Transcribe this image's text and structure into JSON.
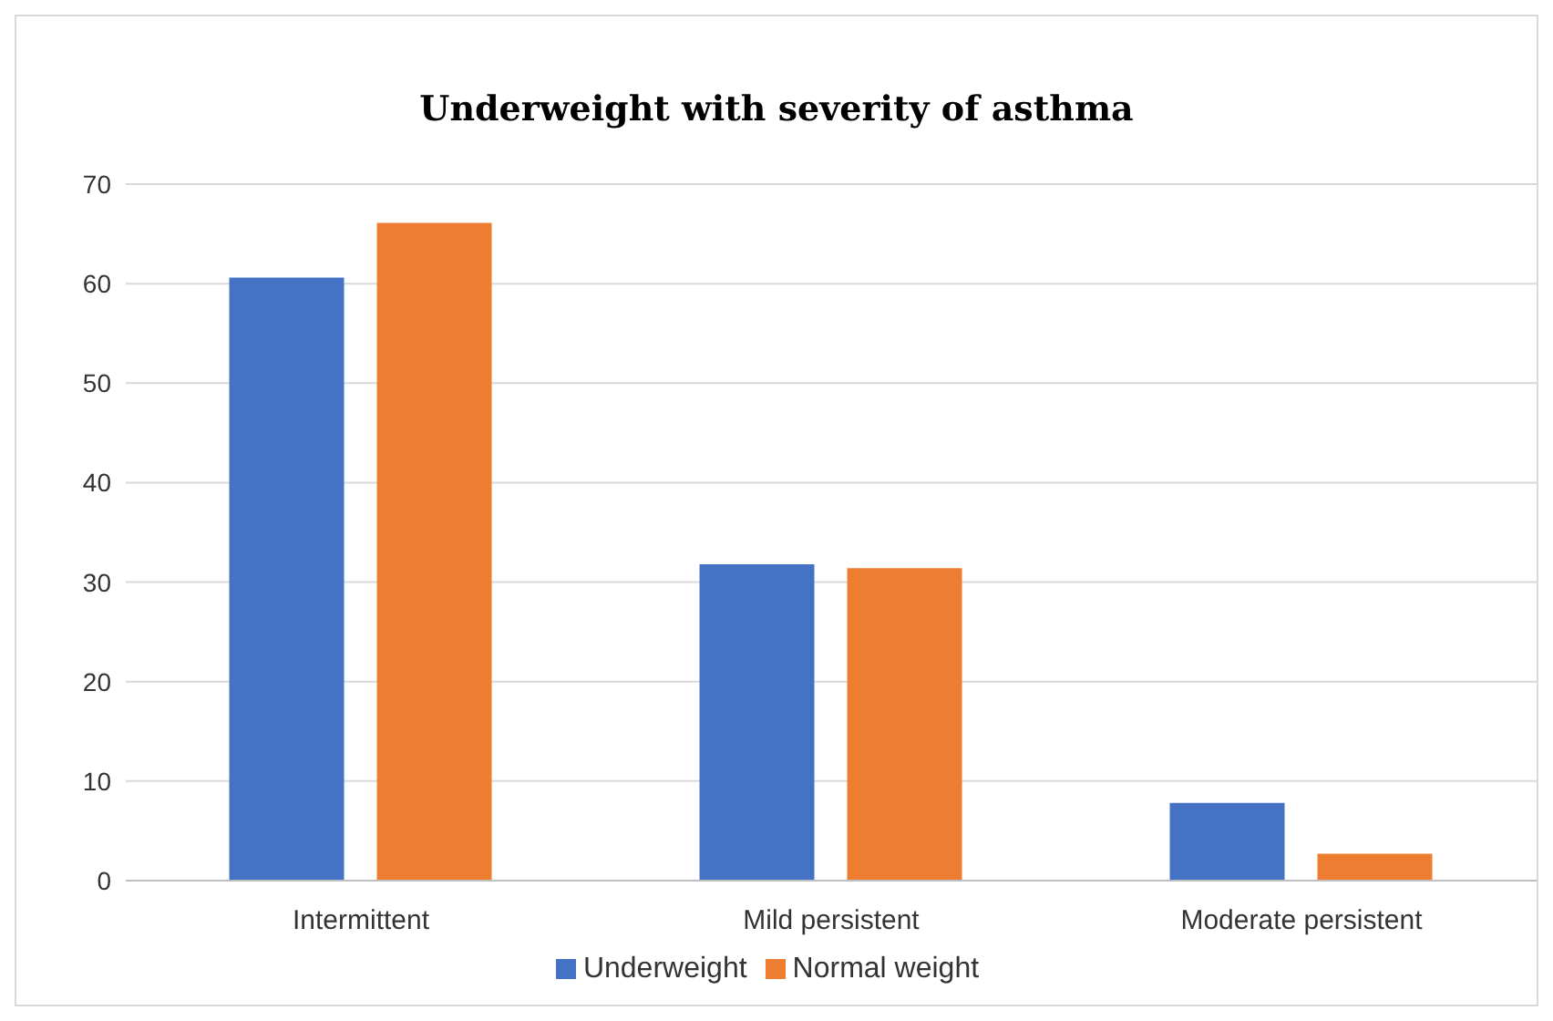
{
  "chart_data": {
    "type": "bar",
    "title": "Underweight with severity of asthma",
    "categories": [
      "Intermittent",
      "Mild persistent",
      "Moderate persistent"
    ],
    "series": [
      {
        "name": "Underweight",
        "color": "#4472c4",
        "values": [
          60.6,
          31.8,
          7.8
        ]
      },
      {
        "name": "Normal weight",
        "color": "#ed7d31",
        "values": [
          66.1,
          31.4,
          2.7
        ]
      }
    ],
    "ylim": [
      0,
      70
    ],
    "yticks": [
      0,
      10,
      20,
      30,
      40,
      50,
      60,
      70
    ],
    "grid": "y",
    "legend": "bottom"
  }
}
